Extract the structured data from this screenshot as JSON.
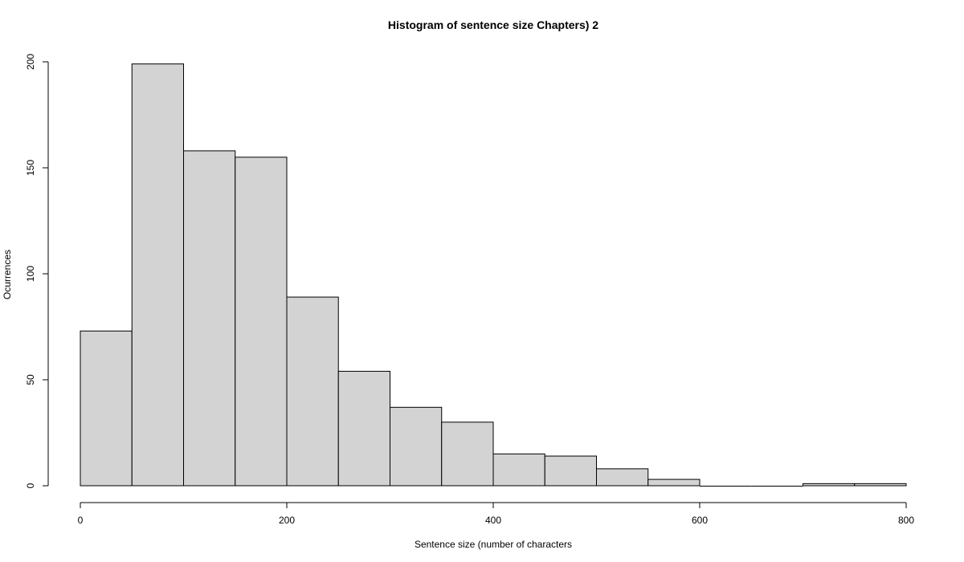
{
  "chart_data": {
    "type": "bar",
    "title": "Histogram of sentence size Chapters) 2",
    "xlabel": "Sentence size (number of characters",
    "ylabel": "Ocurrences",
    "bin_edges": [
      0,
      50,
      100,
      150,
      200,
      250,
      300,
      350,
      400,
      450,
      500,
      550,
      600,
      650,
      700,
      750,
      800
    ],
    "values": [
      73,
      199,
      158,
      155,
      89,
      54,
      37,
      30,
      15,
      14,
      8,
      3,
      0,
      0,
      1,
      1
    ],
    "xlim": [
      0,
      800
    ],
    "ylim": [
      0,
      200
    ],
    "x_ticks": [
      "0",
      "200",
      "400",
      "600",
      "800"
    ],
    "y_ticks": [
      "0",
      "50",
      "100",
      "150",
      "200"
    ],
    "bar_color": "#d3d3d3",
    "grid": false
  }
}
